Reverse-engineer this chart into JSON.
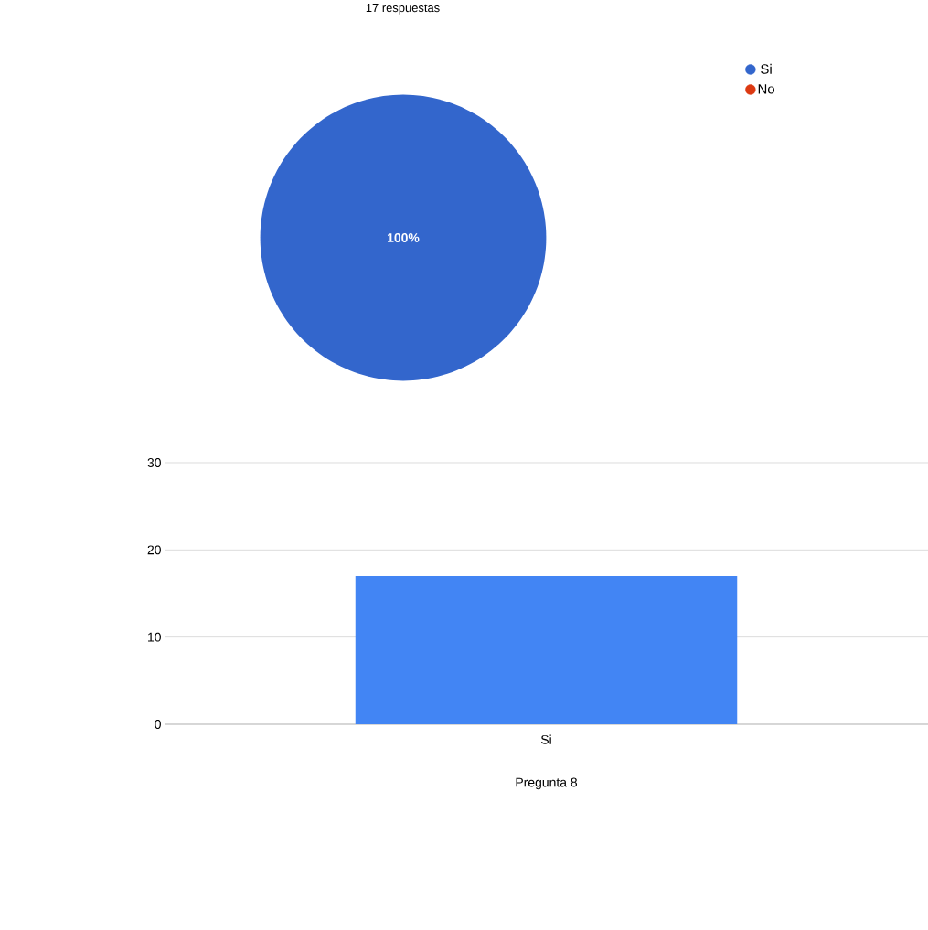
{
  "chart_data": [
    {
      "type": "pie",
      "title": "17 respuestas",
      "categories": [
        "Si",
        "No"
      ],
      "values": [
        100,
        0
      ],
      "colors": [
        "#3366cc",
        "#dc3912"
      ],
      "value_labels": [
        "100%",
        null
      ],
      "legend": "top right"
    },
    {
      "type": "bar",
      "categories": [
        "Si"
      ],
      "values": [
        17
      ],
      "color": "#4285f4",
      "ylim": [
        0,
        30
      ],
      "yticks": [
        0,
        10,
        20,
        30
      ],
      "grid": "y",
      "xlabel": "Pregunta 8"
    }
  ]
}
